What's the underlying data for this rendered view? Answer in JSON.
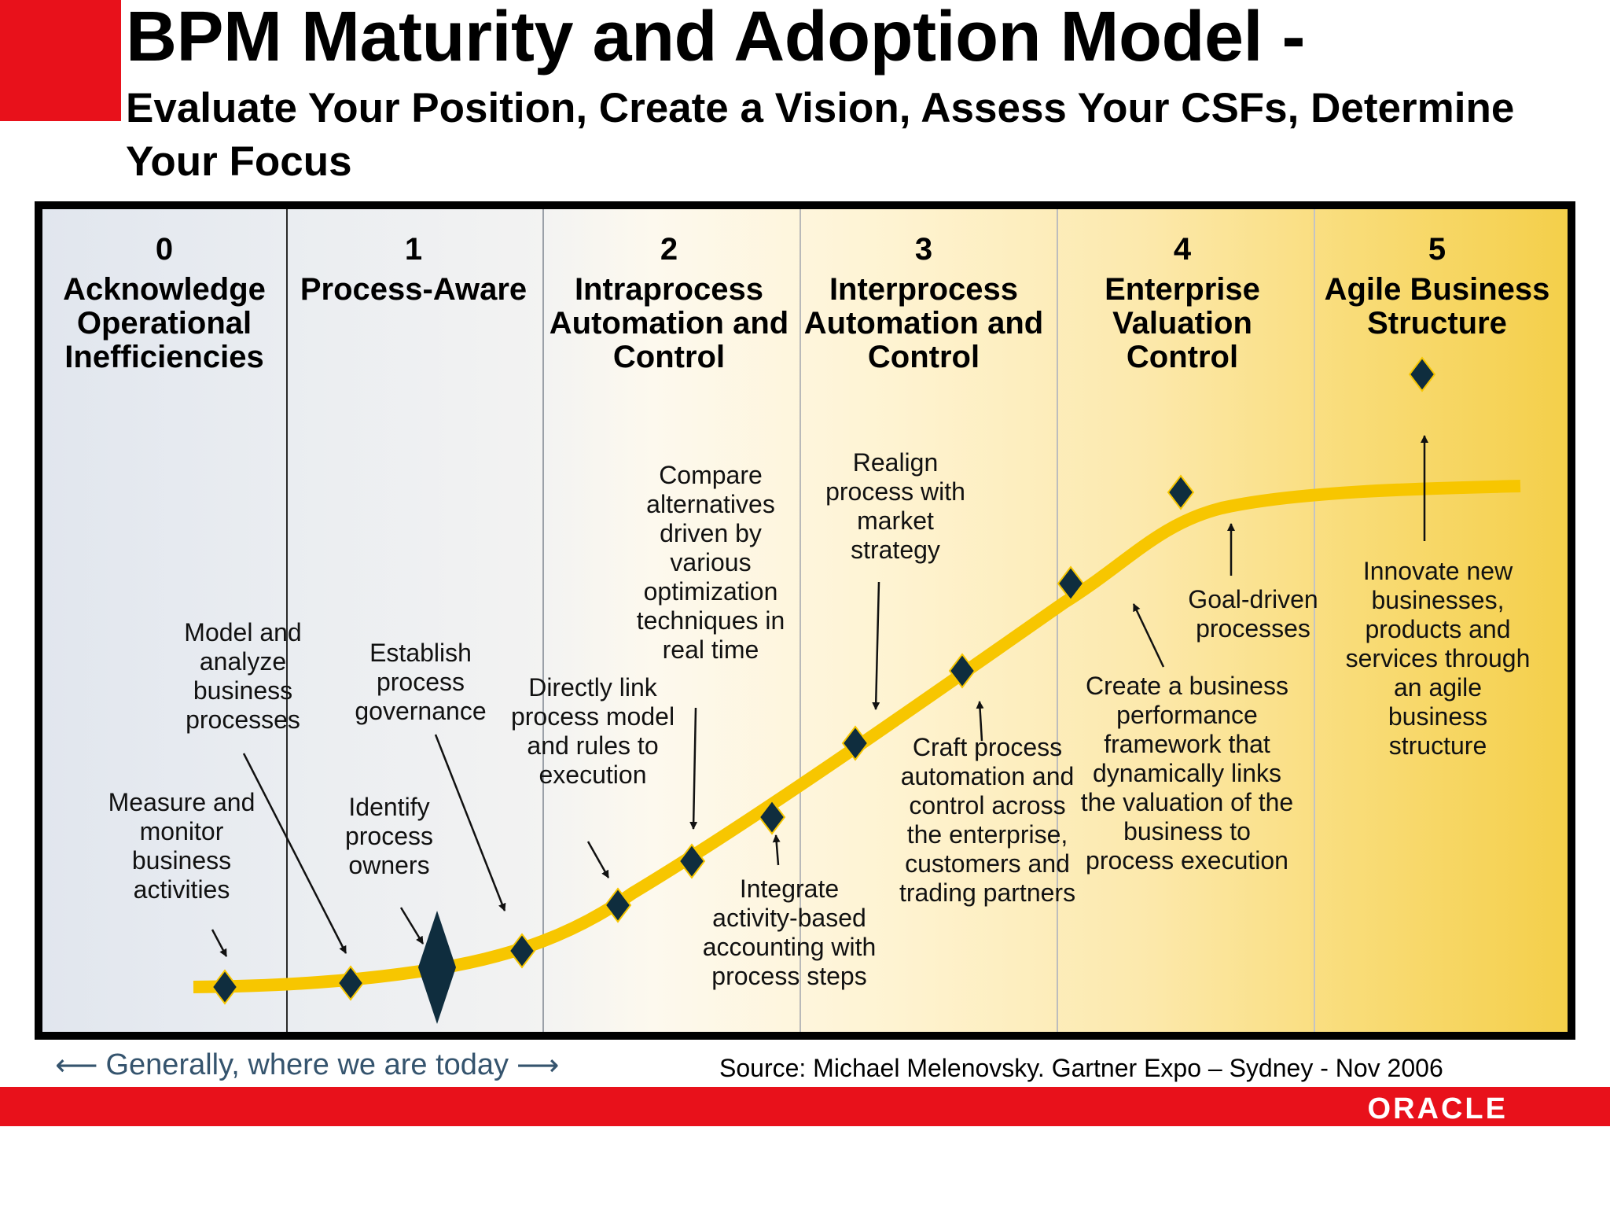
{
  "title": "BPM Maturity and Adoption Model -",
  "subtitle": "Evaluate Your Position, Create a Vision, Assess Your CSFs, Determine Your Focus",
  "colors": {
    "brand_red": "#e8111b",
    "curve": "#f7c600",
    "milestone": "#0f2d3e",
    "footer_text": "#35546e"
  },
  "stages": [
    {
      "number": "0",
      "title": "Acknowledge Operational Inefficiencies"
    },
    {
      "number": "1",
      "title": "Process-Aware"
    },
    {
      "number": "2",
      "title": "Intraprocess Automation and Control"
    },
    {
      "number": "3",
      "title": "Interprocess Automation and Control"
    },
    {
      "number": "4",
      "title": "Enterprise Valuation Control"
    },
    {
      "number": "5",
      "title": "Agile Business Structure"
    }
  ],
  "notes": [
    "Measure and monitor business activities",
    "Model and analyze business processes",
    "Identify process owners",
    "Establish process governance",
    "Directly link process model and rules to execution",
    "Compare alternatives driven by various optimization techniques in real time",
    "Integrate activity-based accounting with process steps",
    "Realign process with market strategy",
    "Craft process automation and control across the enterprise, customers and trading partners",
    "Create a business performance framework that dynamically links the valuation of the business to process execution",
    "Goal-driven processes",
    "Innovate new businesses, products and services through an agile business structure"
  ],
  "footer": {
    "today_label": "Generally, where we are today",
    "left_arrow": "⟵",
    "right_arrow": "⟶",
    "source": "Source: Michael Melenovsky. Gartner Expo – Sydney - Nov 2006"
  },
  "logo_text": "ORACLE"
}
